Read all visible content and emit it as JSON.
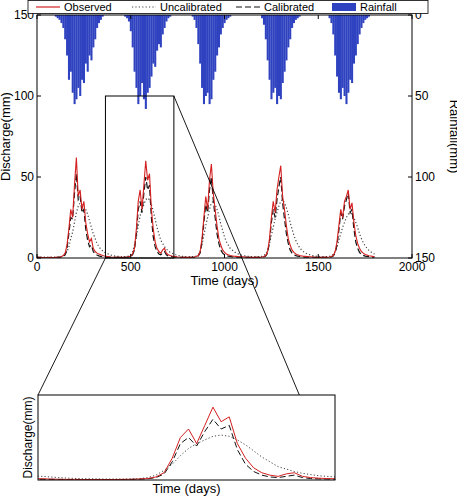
{
  "chart_data": {
    "type": "line",
    "x_label": "Time (days)",
    "y_label": "Discharge(mm)",
    "y2_label": "Rainfall(mm)",
    "xlim": [
      0,
      2000
    ],
    "xticks": [
      0,
      500,
      1000,
      1500,
      2000
    ],
    "ylim": [
      0,
      150
    ],
    "yticks": [
      0,
      50,
      100,
      150
    ],
    "y2lim": [
      150,
      0
    ],
    "y2ticks": [
      0,
      50,
      100,
      150
    ],
    "legend": "top",
    "zoom_box": {
      "xlim": [
        365,
        730
      ],
      "ylim": [
        0,
        100
      ]
    },
    "inset": {
      "xlim": [
        365,
        730
      ],
      "ylim": [
        0,
        70
      ],
      "tick_labels": false
    },
    "x": [
      0,
      10,
      20,
      30,
      40,
      50,
      60,
      70,
      80,
      90,
      100,
      110,
      120,
      130,
      140,
      150,
      160,
      170,
      180,
      190,
      200,
      210,
      220,
      230,
      240,
      250,
      260,
      270,
      280,
      290,
      300,
      310,
      320,
      330,
      340,
      350,
      360,
      370,
      380,
      390,
      400,
      410,
      420,
      430,
      440,
      450,
      460,
      470,
      480,
      490,
      500,
      510,
      520,
      530,
      540,
      550,
      560,
      570,
      580,
      590,
      600,
      610,
      620,
      630,
      640,
      650,
      660,
      670,
      680,
      690,
      700,
      710,
      720,
      730,
      740,
      750,
      760,
      770,
      780,
      790,
      800,
      810,
      820,
      830,
      840,
      850,
      860,
      870,
      880,
      890,
      900,
      910,
      920,
      930,
      940,
      950,
      960,
      970,
      980,
      990,
      1000,
      1010,
      1020,
      1030,
      1040,
      1050,
      1060,
      1070,
      1080,
      1090,
      1100,
      1110,
      1120,
      1130,
      1140,
      1150,
      1160,
      1170,
      1180,
      1190,
      1200,
      1210,
      1220,
      1230,
      1240,
      1250,
      1260,
      1270,
      1280,
      1290,
      1300,
      1310,
      1320,
      1330,
      1340,
      1350,
      1360,
      1370,
      1380,
      1390,
      1400,
      1410,
      1420,
      1430,
      1440,
      1450,
      1460,
      1470,
      1480,
      1490,
      1500,
      1510,
      1520,
      1530,
      1540,
      1550,
      1560,
      1570,
      1580,
      1590,
      1600,
      1610,
      1620,
      1630,
      1640,
      1650,
      1660,
      1670,
      1680,
      1690,
      1700,
      1710,
      1720,
      1730,
      1740,
      1750,
      1760,
      1770,
      1780,
      1790,
      1800
    ],
    "series": [
      {
        "name": "Observed",
        "color": "#d42020",
        "line_style": "solid",
        "values": [
          0.5,
          0.4,
          0.4,
          0.3,
          0.3,
          0.3,
          0.3,
          0.4,
          0.3,
          0.3,
          0.4,
          0.5,
          0.6,
          0.8,
          1.5,
          3,
          8,
          18,
          30,
          25,
          45,
          62,
          38,
          42,
          30,
          35,
          22,
          15,
          10,
          12,
          6,
          4,
          3,
          2.5,
          2,
          1.5,
          1.2,
          1,
          0.8,
          0.6,
          0.5,
          0.5,
          0.4,
          0.4,
          0.4,
          0.4,
          0.4,
          0.5,
          0.6,
          0.8,
          1.2,
          2.5,
          6,
          18,
          35,
          42,
          30,
          45,
          60,
          48,
          52,
          30,
          18,
          10,
          6,
          4,
          3,
          5,
          6,
          3,
          2,
          1.5,
          1.2,
          1,
          0.8,
          0.6,
          0.5,
          0.5,
          0.4,
          0.4,
          0.4,
          0.4,
          0.4,
          0.5,
          0.6,
          0.9,
          1.5,
          4,
          12,
          25,
          38,
          30,
          48,
          58,
          40,
          30,
          20,
          12,
          8,
          5,
          3.5,
          2.5,
          2,
          1.6,
          1.3,
          1.1,
          1,
          0.9,
          0.8,
          0.8,
          0.7,
          0.6,
          0.5,
          0.5,
          0.4,
          0.4,
          0.4,
          0.4,
          0.4,
          0.5,
          0.6,
          0.9,
          1.5,
          4,
          12,
          25,
          35,
          28,
          42,
          50,
          57,
          38,
          30,
          20,
          12,
          8,
          5,
          3.5,
          2.5,
          2,
          1.6,
          1.3,
          1.1,
          1,
          0.9,
          0.8,
          0.7,
          0.6,
          0.5,
          0.5,
          0.4,
          0.4,
          0.4,
          0.4,
          0.4,
          0.5,
          0.6,
          0.9,
          1.5,
          4,
          10,
          20,
          30,
          25,
          35,
          38,
          42,
          30,
          34,
          22,
          14,
          9,
          6,
          4,
          3,
          2.2,
          1.8,
          1.4,
          1.2,
          1,
          0.9
        ]
      },
      {
        "name": "Uncalibrated",
        "color": "#444444",
        "line_style": "dotted",
        "values": [
          0.6,
          0.5,
          0.5,
          0.5,
          0.5,
          0.5,
          0.5,
          0.5,
          0.5,
          0.5,
          0.5,
          0.6,
          0.6,
          0.8,
          1,
          2,
          4,
          7,
          12,
          16,
          22,
          28,
          32,
          34,
          33,
          32,
          30,
          27,
          23,
          19,
          15,
          12,
          9,
          7,
          5.5,
          4.5,
          3.5,
          3,
          2.5,
          2,
          1.6,
          1.3,
          1.1,
          1,
          0.9,
          0.8,
          0.8,
          0.8,
          0.9,
          1.2,
          2,
          4,
          8,
          13,
          20,
          26,
          30,
          33,
          36,
          37,
          36,
          33,
          29,
          24,
          19,
          15,
          11,
          9,
          7,
          5.5,
          4.5,
          3.5,
          3,
          2.5,
          2,
          1.6,
          1.3,
          1.1,
          1,
          0.9,
          0.8,
          0.8,
          0.8,
          0.8,
          0.9,
          1.2,
          2,
          4,
          8,
          14,
          20,
          25,
          30,
          34,
          35,
          33,
          30,
          26,
          21,
          17,
          13,
          10,
          8,
          6,
          5,
          4,
          3.2,
          2.6,
          2.2,
          1.8,
          1.5,
          1.3,
          1.1,
          1,
          0.9,
          0.8,
          0.8,
          0.8,
          0.8,
          0.9,
          1,
          1.5,
          2.5,
          5,
          9,
          14,
          19,
          24,
          28,
          32,
          35,
          36,
          34,
          31,
          27,
          22,
          18,
          14,
          11,
          8.5,
          6.5,
          5,
          4,
          3.2,
          2.6,
          2.2,
          1.8,
          1.5,
          1.3,
          1.1,
          1,
          0.9,
          0.8,
          0.8,
          0.8,
          0.9,
          1,
          1.4,
          2.2,
          4,
          7,
          11,
          15,
          19,
          22,
          25,
          27,
          28,
          27,
          25,
          22,
          19,
          15,
          12,
          9.5,
          7.5,
          6,
          4.8,
          3.8,
          3,
          2.5
        ]
      },
      {
        "name": "Calibrated",
        "color": "#111111",
        "line_style": "dashed",
        "values": [
          0.4,
          0.4,
          0.3,
          0.3,
          0.3,
          0.3,
          0.3,
          0.3,
          0.3,
          0.3,
          0.3,
          0.4,
          0.5,
          0.6,
          1.2,
          2,
          6,
          15,
          25,
          24,
          40,
          52,
          36,
          38,
          28,
          30,
          18,
          11,
          7,
          8,
          4,
          2.5,
          1.8,
          1.3,
          1,
          0.8,
          0.7,
          0.6,
          0.5,
          0.5,
          0.4,
          0.4,
          0.4,
          0.4,
          0.4,
          0.4,
          0.4,
          0.4,
          0.5,
          0.7,
          1,
          2,
          5,
          15,
          30,
          35,
          28,
          40,
          50,
          42,
          45,
          25,
          13,
          7,
          4,
          2.5,
          2,
          3,
          4,
          2,
          1.2,
          0.9,
          0.8,
          0.7,
          0.6,
          0.5,
          0.5,
          0.4,
          0.4,
          0.4,
          0.4,
          0.4,
          0.4,
          0.4,
          0.5,
          0.8,
          1.2,
          3,
          10,
          22,
          33,
          28,
          42,
          50,
          36,
          25,
          15,
          9,
          5,
          3,
          2,
          1.5,
          1.2,
          1,
          0.8,
          0.7,
          0.6,
          0.6,
          0.5,
          0.5,
          0.5,
          0.5,
          0.4,
          0.4,
          0.4,
          0.4,
          0.4,
          0.4,
          0.4,
          0.4,
          0.5,
          0.7,
          1.2,
          3,
          10,
          22,
          30,
          25,
          36,
          44,
          50,
          34,
          24,
          15,
          9,
          5,
          3,
          2,
          1.5,
          1.2,
          1,
          0.8,
          0.7,
          0.6,
          0.6,
          0.5,
          0.5,
          0.5,
          0.4,
          0.4,
          0.4,
          0.4,
          0.4,
          0.4,
          0.4,
          0.4,
          0.5,
          0.7,
          1.2,
          3,
          8,
          17,
          28,
          24,
          32,
          36,
          40,
          28,
          30,
          18,
          10,
          6,
          3.5,
          2.2,
          1.6,
          1.2,
          1,
          0.8,
          0.7,
          0.6,
          0.5
        ]
      },
      {
        "name": "Rainfall",
        "color": "#2f42c0",
        "type": "bar",
        "axis": "y2",
        "values": [
          0,
          0,
          0,
          0,
          0,
          0,
          0,
          0,
          0,
          0,
          1,
          2,
          3,
          5,
          8,
          15,
          25,
          40,
          35,
          48,
          55,
          52,
          45,
          50,
          40,
          42,
          30,
          35,
          25,
          28,
          20,
          15,
          8,
          5,
          3,
          1,
          0,
          0,
          0,
          0,
          0,
          0,
          0,
          0,
          0,
          0,
          0,
          1,
          2,
          4,
          10,
          20,
          35,
          45,
          55,
          50,
          42,
          52,
          58,
          48,
          45,
          38,
          30,
          32,
          22,
          18,
          20,
          12,
          8,
          4,
          2,
          1,
          0,
          0,
          0,
          0,
          0,
          0,
          0,
          0,
          0,
          0,
          0,
          1,
          3,
          8,
          18,
          30,
          45,
          55,
          50,
          48,
          55,
          52,
          40,
          35,
          25,
          20,
          12,
          8,
          5,
          3,
          2,
          1,
          0,
          0,
          0,
          0,
          0,
          0,
          0,
          0,
          0,
          0,
          0,
          0,
          0,
          0,
          0,
          0,
          2,
          6,
          15,
          28,
          40,
          52,
          48,
          45,
          55,
          50,
          52,
          42,
          35,
          28,
          20,
          15,
          8,
          5,
          3,
          2,
          1,
          0,
          0,
          0,
          0,
          0,
          0,
          0,
          0,
          0,
          0,
          0,
          0,
          0,
          0,
          0,
          2,
          5,
          12,
          25,
          38,
          48,
          52,
          45,
          50,
          55,
          48,
          40,
          42,
          30,
          25,
          18,
          12,
          8,
          5,
          3,
          2,
          1,
          0,
          0,
          0
        ]
      }
    ]
  }
}
